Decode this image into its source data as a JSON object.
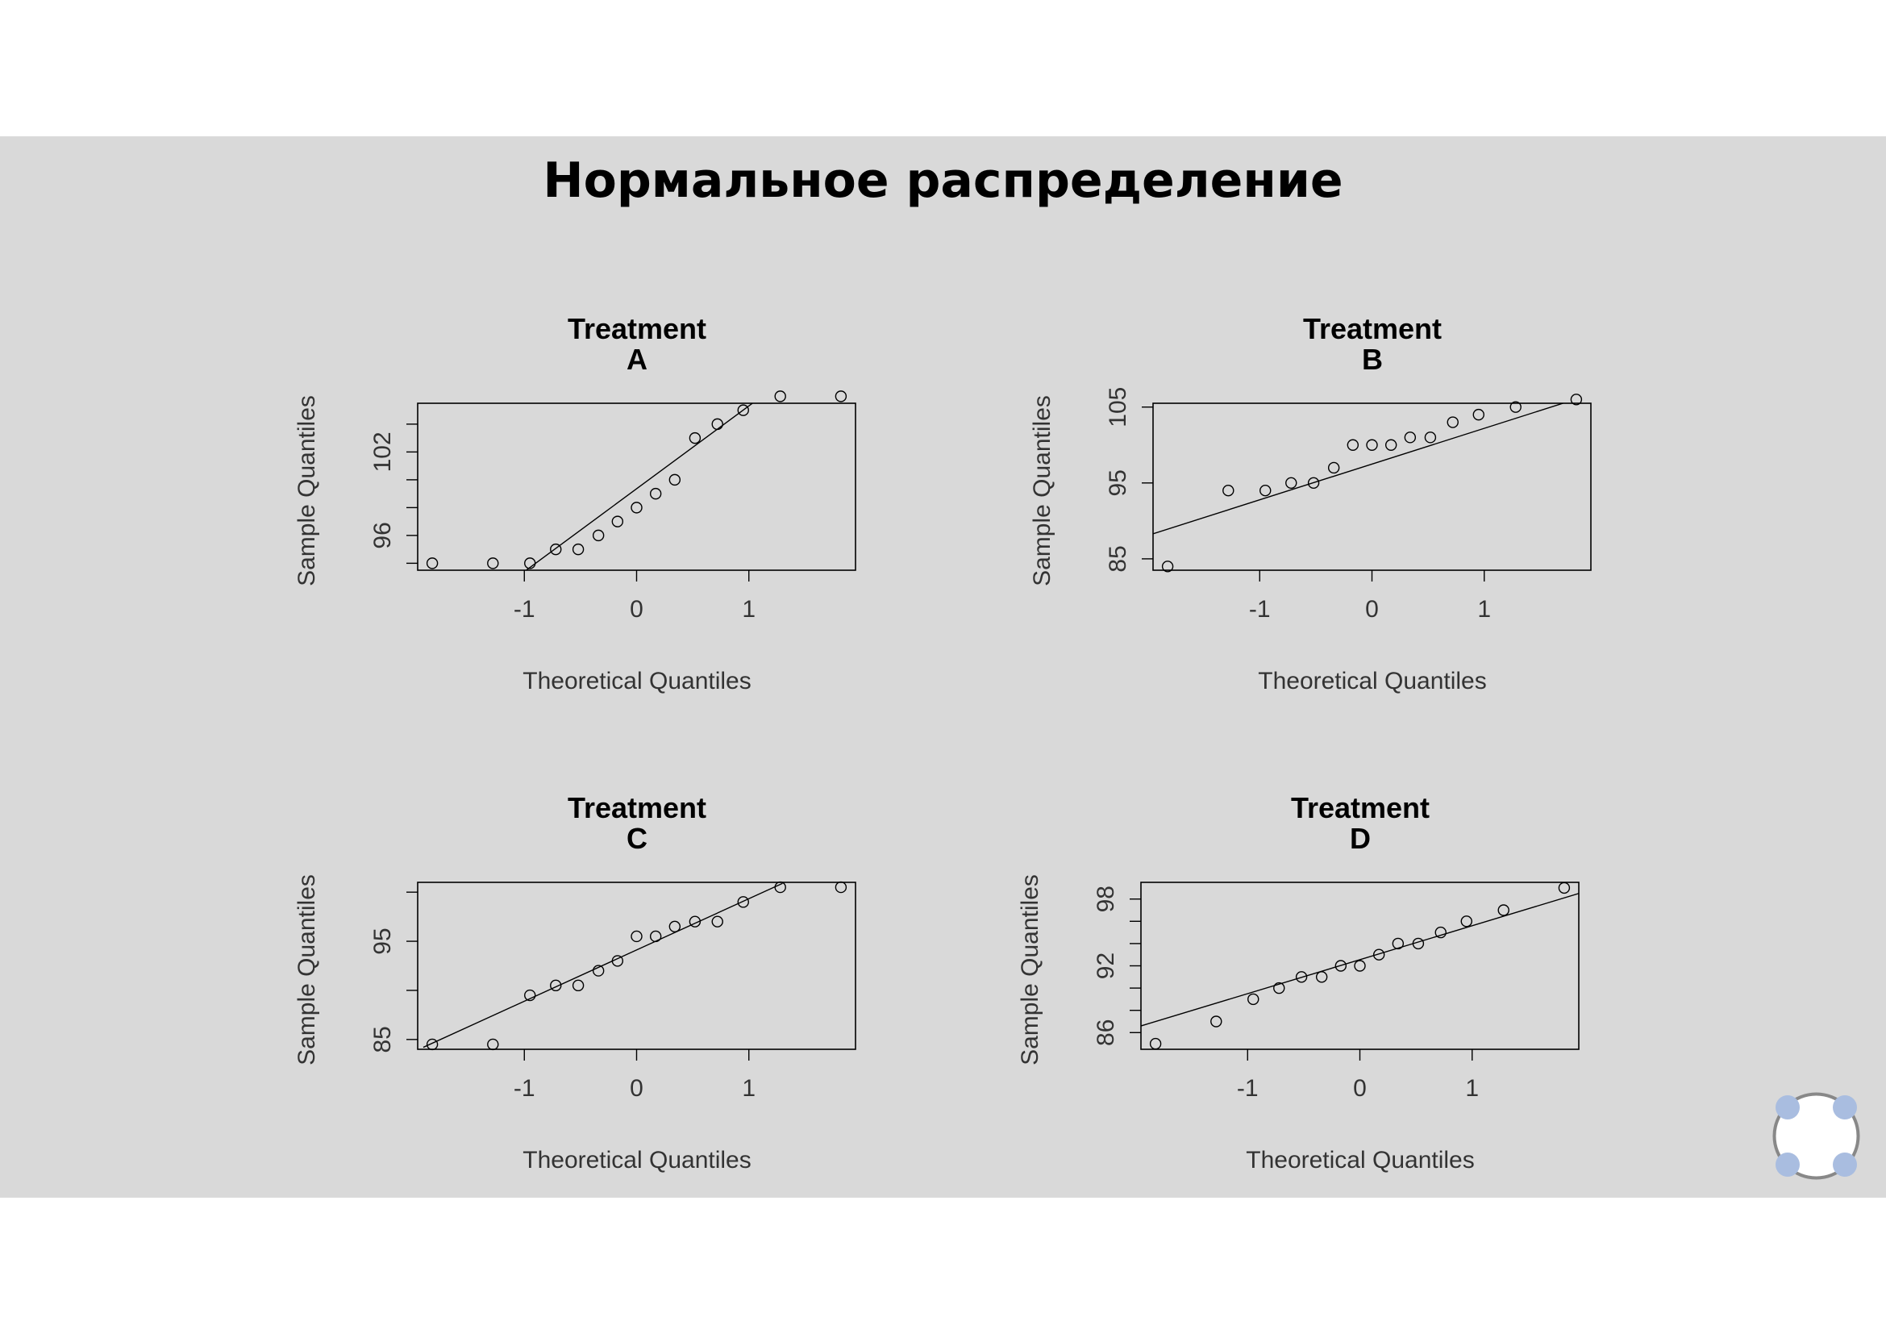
{
  "slide": {
    "title": "Нормальное распределение"
  },
  "colors": {
    "background": "#d9d9d9",
    "page": "#ffffff",
    "ink": "#000000",
    "widget_accent": "#a9bde0"
  },
  "chart_data": [
    {
      "type": "scatter",
      "title": "Treatment A",
      "title_lines": [
        "Treatment",
        "A"
      ],
      "xlabel": "Theoretical Quantiles",
      "ylabel": "Sample Quantiles",
      "xlim": [
        -1.95,
        1.95
      ],
      "ylim": [
        93.5,
        105.5
      ],
      "xticks": [
        -1,
        0,
        1
      ],
      "xtick_labels": [
        "-1",
        "0",
        "1"
      ],
      "yticks": [
        94,
        96,
        98,
        100,
        102,
        104,
        106
      ],
      "ytick_labels": [
        "",
        "96",
        "",
        "",
        "102",
        "",
        ""
      ],
      "points": {
        "x": [
          -1.82,
          -1.28,
          -0.95,
          -0.72,
          -0.52,
          -0.34,
          -0.17,
          0.0,
          0.17,
          0.34,
          0.52,
          0.72,
          0.95,
          1.28,
          1.82
        ],
        "y": [
          94,
          94,
          94,
          95,
          95,
          96,
          97,
          98,
          99,
          100,
          103,
          104,
          105,
          106,
          106
        ]
      },
      "reference_line": {
        "x": [
          -1.0,
          1.2
        ],
        "y": [
          93.4,
          106.5
        ]
      }
    },
    {
      "type": "scatter",
      "title": "Treatment B",
      "title_lines": [
        "Treatment",
        "B"
      ],
      "xlabel": "Theoretical Quantiles",
      "ylabel": "Sample Quantiles",
      "xlim": [
        -1.95,
        1.95
      ],
      "ylim": [
        83.5,
        105.5
      ],
      "xticks": [
        -1,
        0,
        1
      ],
      "xtick_labels": [
        "-1",
        "0",
        "1"
      ],
      "yticks": [
        85,
        95,
        105
      ],
      "ytick_labels": [
        "85",
        "95",
        "105"
      ],
      "points": {
        "x": [
          -1.82,
          -1.28,
          -0.95,
          -0.72,
          -0.52,
          -0.34,
          -0.17,
          0.0,
          0.17,
          0.34,
          0.52,
          0.72,
          0.95,
          1.28,
          1.82
        ],
        "y": [
          84,
          94,
          94,
          95,
          95,
          97,
          100,
          100,
          100,
          101,
          101,
          103,
          104,
          105,
          106
        ]
      },
      "reference_line": {
        "x": [
          -1.95,
          1.85
        ],
        "y": [
          88.3,
          106.2
        ]
      }
    },
    {
      "type": "scatter",
      "title": "Treatment C",
      "title_lines": [
        "Treatment",
        "C"
      ],
      "xlabel": "Theoretical Quantiles",
      "ylabel": "Sample Quantiles",
      "xlim": [
        -1.95,
        1.95
      ],
      "ylim": [
        84,
        101
      ],
      "xticks": [
        -1,
        0,
        1
      ],
      "xtick_labels": [
        "-1",
        "0",
        "1"
      ],
      "yticks": [
        85,
        90,
        95,
        100
      ],
      "ytick_labels": [
        "85",
        "",
        "95",
        ""
      ],
      "points": {
        "x": [
          -1.82,
          -1.28,
          -0.95,
          -0.72,
          -0.52,
          -0.34,
          -0.17,
          0.0,
          0.17,
          0.34,
          0.52,
          0.72,
          0.95,
          1.28,
          1.82
        ],
        "y": [
          84.5,
          84.5,
          89.5,
          90.5,
          90.5,
          92,
          93,
          95.5,
          95.5,
          96.5,
          97,
          97,
          99,
          100.5,
          100.5
        ]
      },
      "reference_line": {
        "x": [
          -1.9,
          1.3
        ],
        "y": [
          84.2,
          100.9
        ]
      }
    },
    {
      "type": "scatter",
      "title": "Treatment D",
      "title_lines": [
        "Treatment",
        "D"
      ],
      "xlabel": "Theoretical Quantiles",
      "ylabel": "Sample Quantiles",
      "xlim": [
        -1.95,
        1.95
      ],
      "ylim": [
        84.5,
        99.5
      ],
      "xticks": [
        -1,
        0,
        1
      ],
      "xtick_labels": [
        "-1",
        "0",
        "1"
      ],
      "yticks": [
        86,
        88,
        90,
        92,
        94,
        96,
        98
      ],
      "ytick_labels": [
        "86",
        "",
        "",
        "92",
        "",
        "",
        "98"
      ],
      "points": {
        "x": [
          -1.82,
          -1.28,
          -0.95,
          -0.72,
          -0.52,
          -0.34,
          -0.17,
          0.0,
          0.17,
          0.34,
          0.52,
          0.72,
          0.95,
          1.28,
          1.82
        ],
        "y": [
          85,
          87,
          89,
          90,
          91,
          91,
          92,
          92,
          93,
          94,
          94,
          95,
          96,
          97,
          99
        ]
      },
      "reference_line": {
        "x": [
          -1.95,
          1.95
        ],
        "y": [
          86.6,
          98.5
        ]
      }
    }
  ]
}
